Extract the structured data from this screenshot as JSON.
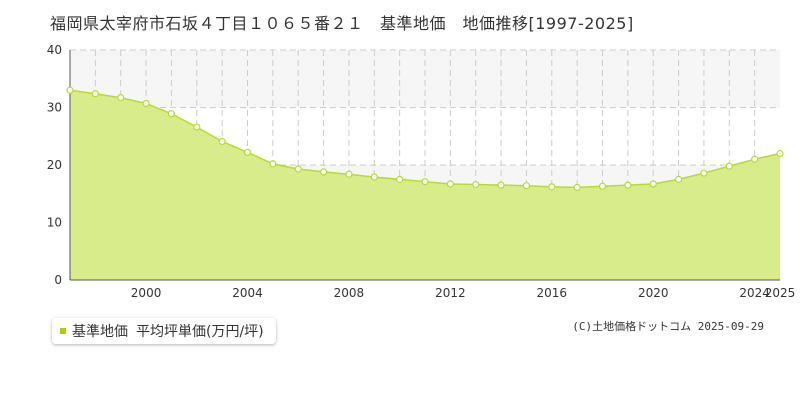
{
  "header": {
    "title": "福岡県太宰府市石坂４丁目１０６５番２１　基準地価　地価推移[1997-2025]"
  },
  "legend": {
    "label": "基準地価",
    "unit": "平均坪単価(万円/坪)"
  },
  "footer": {
    "copyright": "(C)土地価格ドットコム 2025-09-29"
  },
  "colors": {
    "fill": "#d9ec8c",
    "line": "#b5dc32",
    "marker_fill": "#ffffff",
    "band": "#f6f6f6",
    "grid": "#cccccc"
  },
  "chart_data": {
    "type": "area",
    "xlabel": "",
    "ylabel": "",
    "xlim": [
      1997,
      2025
    ],
    "ylim": [
      0,
      40
    ],
    "yticks": [
      0,
      10,
      20,
      30,
      40
    ],
    "xtick_labels": [
      "2000",
      "2004",
      "2008",
      "2012",
      "2016",
      "2020",
      "2024",
      "2025"
    ],
    "grid": true,
    "legend_position": "bottom-left",
    "series": [
      {
        "name": "基準地価",
        "x": [
          1997,
          1998,
          1999,
          2000,
          2001,
          2002,
          2003,
          2004,
          2005,
          2006,
          2007,
          2008,
          2009,
          2010,
          2011,
          2012,
          2013,
          2014,
          2015,
          2016,
          2017,
          2018,
          2019,
          2020,
          2021,
          2022,
          2023,
          2024,
          2025
        ],
        "values": [
          33.0,
          32.4,
          31.7,
          30.7,
          28.9,
          26.6,
          24.1,
          22.2,
          20.2,
          19.3,
          18.8,
          18.4,
          17.9,
          17.5,
          17.1,
          16.7,
          16.6,
          16.5,
          16.4,
          16.2,
          16.1,
          16.3,
          16.5,
          16.7,
          17.5,
          18.6,
          19.8,
          21.0,
          22.0
        ]
      }
    ]
  }
}
